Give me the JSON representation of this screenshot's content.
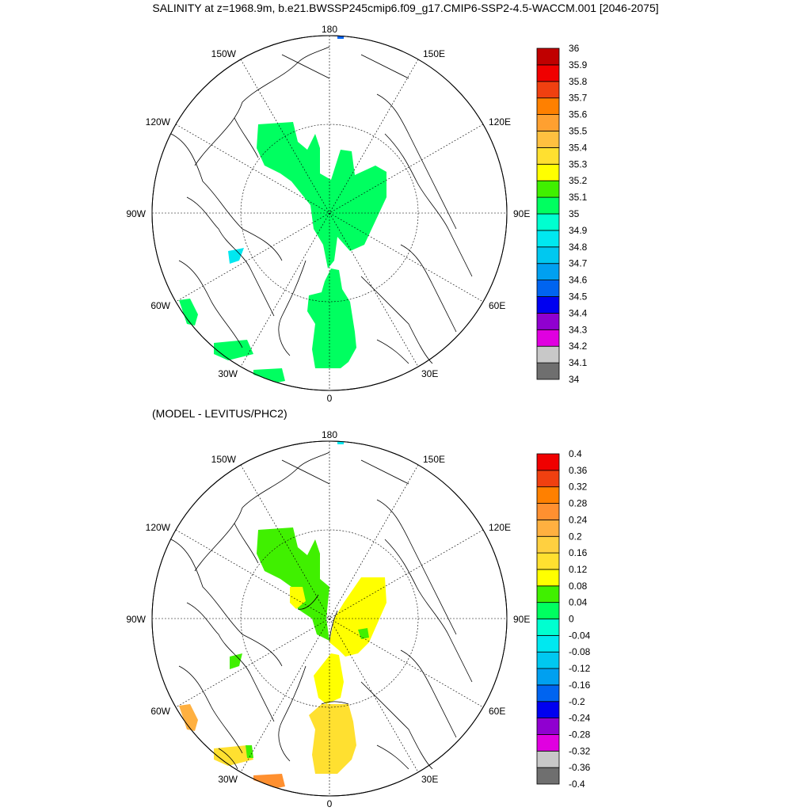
{
  "title": "SALINITY at z=1968.9m, b.e21.BWSSP245cmip6.f09_g17.CMIP6-SSP2-4.5-WACCM.001 [2046-2075]",
  "subtitle": "(MODEL - LEVITUS/PHC2)",
  "longitude_labels": [
    "180",
    "150E",
    "120E",
    "90E",
    "60E",
    "30E",
    "0",
    "30W",
    "60W",
    "90W",
    "120W",
    "150W"
  ],
  "colors": {
    "top_scale": [
      "#6f6f6f",
      "#c8c8c8",
      "#e000e0",
      "#9000d0",
      "#0000f0",
      "#0064f0",
      "#00a0f0",
      "#00c8f0",
      "#00e8f0",
      "#00ffd0",
      "#00ff60",
      "#40f000",
      "#ffff00",
      "#ffe030",
      "#ffc040",
      "#ffa030",
      "#ff8000",
      "#f04010",
      "#f00000",
      "#c00000"
    ],
    "diff_scale": [
      "#6f6f6f",
      "#c8c8c8",
      "#e000e0",
      "#9000d0",
      "#0000f0",
      "#0064f0",
      "#00a0f0",
      "#00c8f0",
      "#00e8f0",
      "#00ffd0",
      "#00ff60",
      "#40f000",
      "#ffff00",
      "#ffe030",
      "#ffd040",
      "#ffb040",
      "#ff9030",
      "#ff8000",
      "#f04010",
      "#f00000",
      "#c00000"
    ]
  },
  "chart_data": [
    {
      "type": "heatmap",
      "name": "salinity",
      "projection": "north polar stereographic",
      "colorbar_levels": [
        "36",
        "35.9",
        "35.8",
        "35.7",
        "35.6",
        "35.5",
        "35.4",
        "35.3",
        "35.2",
        "35.1",
        "35",
        "34.9",
        "34.8",
        "34.7",
        "34.6",
        "34.5",
        "34.4",
        "34.3",
        "34.2",
        "34.1",
        "34"
      ],
      "dominant_value_range": [
        35.0,
        35.1
      ]
    },
    {
      "type": "heatmap",
      "name": "model minus levitus/phc2",
      "projection": "north polar stereographic",
      "colorbar_levels": [
        "0.4",
        "0.36",
        "0.32",
        "0.28",
        "0.24",
        "0.2",
        "0.16",
        "0.12",
        "0.08",
        "0.04",
        "0",
        "-0.04",
        "-0.08",
        "-0.12",
        "-0.16",
        "-0.2",
        "-0.24",
        "-0.28",
        "-0.32",
        "-0.36",
        "-0.4"
      ],
      "dominant_value_range": [
        0.08,
        0.16
      ]
    }
  ]
}
